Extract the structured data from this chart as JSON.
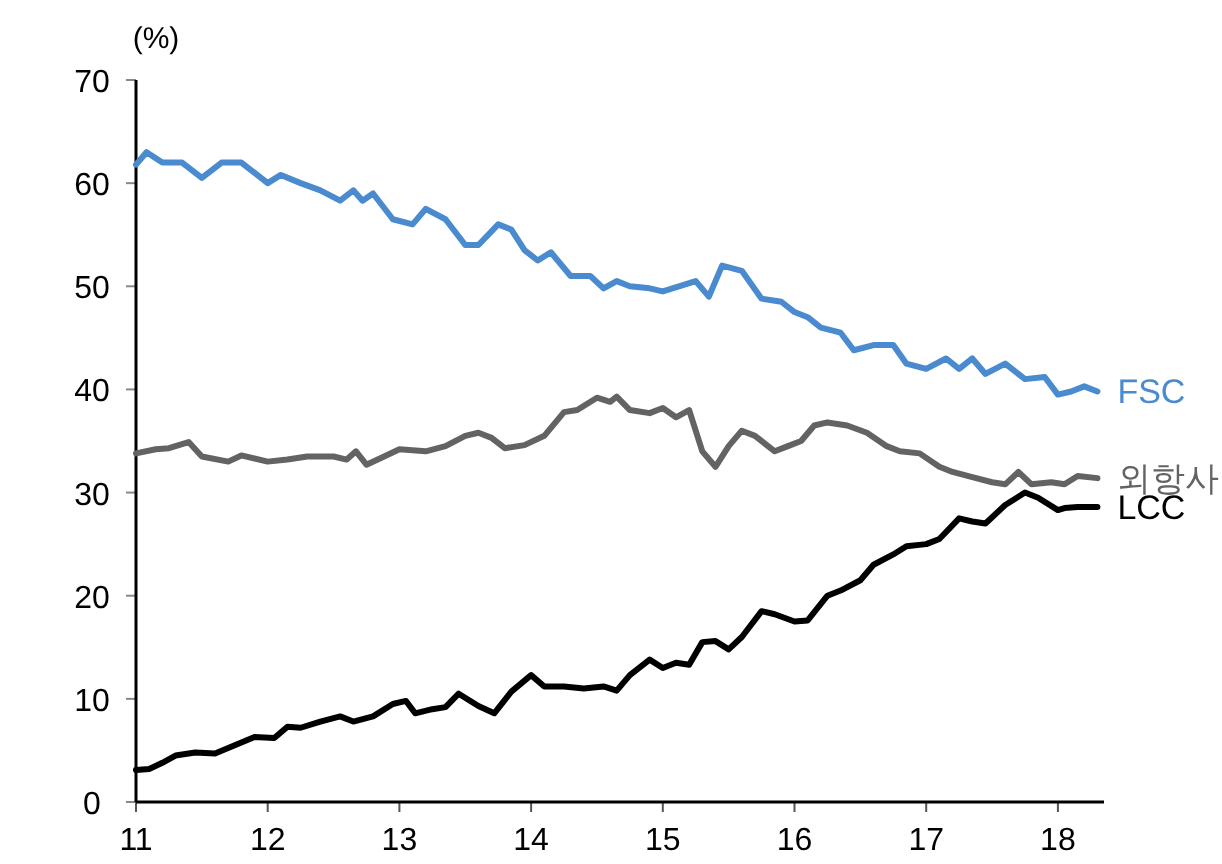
{
  "chart_data": {
    "type": "line",
    "ylabel": "(%)",
    "xlim": [
      11,
      18.35
    ],
    "ylim": [
      0,
      70
    ],
    "xticks": [
      11,
      12,
      13,
      14,
      15,
      16,
      17,
      18
    ],
    "yticks": [
      0,
      10,
      20,
      30,
      40,
      50,
      60,
      70
    ],
    "grid": false,
    "legend": false,
    "marker": "none",
    "line_style": "solid",
    "series": [
      {
        "name": "FSC",
        "color": "#4a8bd0",
        "x": [
          11,
          11.08,
          11.2,
          11.35,
          11.5,
          11.65,
          11.8,
          12,
          12.1,
          12.25,
          12.4,
          12.55,
          12.65,
          12.72,
          12.8,
          12.95,
          13.1,
          13.2,
          13.35,
          13.5,
          13.6,
          13.75,
          13.85,
          13.95,
          14.05,
          14.15,
          14.3,
          14.45,
          14.55,
          14.65,
          14.75,
          14.9,
          15,
          15.25,
          15.35,
          15.45,
          15.6,
          15.75,
          15.9,
          16,
          16.1,
          16.2,
          16.35,
          16.45,
          16.6,
          16.75,
          16.85,
          17,
          17.15,
          17.25,
          17.35,
          17.45,
          17.6,
          17.75,
          17.9,
          18,
          18.1,
          18.2,
          18.3
        ],
        "values": [
          61.8,
          63,
          62,
          62,
          60.5,
          62,
          62,
          60,
          60.8,
          60,
          59.3,
          58.3,
          59.3,
          58.3,
          59,
          56.5,
          56,
          57.5,
          56.5,
          54,
          54,
          56,
          55.5,
          53.5,
          52.5,
          53.3,
          51,
          51,
          49.8,
          50.5,
          50,
          49.8,
          49.5,
          50.5,
          49,
          52,
          51.5,
          48.8,
          48.5,
          47.5,
          47,
          46,
          45.5,
          43.8,
          44.3,
          44.3,
          42.5,
          42,
          43,
          42,
          43,
          41.5,
          42.5,
          41,
          41.2,
          39.5,
          39.8,
          40.3,
          39.8
        ]
      },
      {
        "name": "외항사",
        "color": "#636363",
        "x": [
          11,
          11.15,
          11.25,
          11.4,
          11.5,
          11.7,
          11.8,
          12,
          12.15,
          12.3,
          12.5,
          12.6,
          12.67,
          12.75,
          12.9,
          13,
          13.2,
          13.35,
          13.5,
          13.6,
          13.7,
          13.8,
          13.95,
          14.1,
          14.25,
          14.35,
          14.5,
          14.6,
          14.65,
          14.75,
          14.9,
          15,
          15.1,
          15.2,
          15.3,
          15.4,
          15.5,
          15.6,
          15.7,
          15.85,
          15.95,
          16.05,
          16.15,
          16.25,
          16.4,
          16.55,
          16.7,
          16.8,
          16.95,
          17.1,
          17.2,
          17.35,
          17.5,
          17.6,
          17.7,
          17.8,
          17.95,
          18.05,
          18.15,
          18.3
        ],
        "values": [
          33.8,
          34.2,
          34.3,
          34.9,
          33.5,
          33,
          33.6,
          33,
          33.2,
          33.5,
          33.5,
          33.2,
          34,
          32.7,
          33.6,
          34.2,
          34,
          34.5,
          35.5,
          35.8,
          35.3,
          34.3,
          34.6,
          35.5,
          37.8,
          38,
          39.2,
          38.8,
          39.3,
          38,
          37.7,
          38.2,
          37.3,
          38,
          34,
          32.5,
          34.5,
          36,
          35.5,
          34,
          34.5,
          35,
          36.5,
          36.8,
          36.5,
          35.8,
          34.5,
          34,
          33.8,
          32.5,
          32,
          31.5,
          31,
          30.8,
          32,
          30.8,
          31,
          30.8,
          31.6,
          31.4
        ]
      },
      {
        "name": "LCC",
        "color": "#000000",
        "x": [
          11,
          11.1,
          11.2,
          11.3,
          11.45,
          11.6,
          11.75,
          11.9,
          12.05,
          12.15,
          12.25,
          12.4,
          12.55,
          12.65,
          12.8,
          12.95,
          13.05,
          13.12,
          13.25,
          13.35,
          13.45,
          13.6,
          13.72,
          13.85,
          14,
          14.1,
          14.25,
          14.4,
          14.55,
          14.65,
          14.75,
          14.9,
          15,
          15.1,
          15.2,
          15.3,
          15.4,
          15.5,
          15.6,
          15.75,
          15.85,
          16,
          16.1,
          16.25,
          16.35,
          16.5,
          16.6,
          16.75,
          16.85,
          17,
          17.1,
          17.25,
          17.35,
          17.45,
          17.6,
          17.75,
          17.85,
          18,
          18.05,
          18.15,
          18.3
        ],
        "values": [
          3.1,
          3.2,
          3.8,
          4.5,
          4.8,
          4.7,
          5.5,
          6.3,
          6.2,
          7.3,
          7.2,
          7.8,
          8.3,
          7.8,
          8.3,
          9.5,
          9.8,
          8.6,
          9,
          9.2,
          10.5,
          9.3,
          8.6,
          10.7,
          12.3,
          11.2,
          11.2,
          11,
          11.2,
          10.8,
          12.3,
          13.8,
          13,
          13.5,
          13.3,
          15.5,
          15.6,
          14.8,
          16,
          18.5,
          18.2,
          17.5,
          17.6,
          20,
          20.5,
          21.5,
          23,
          24,
          24.8,
          25,
          25.5,
          27.5,
          27.2,
          27,
          28.8,
          30,
          29.5,
          28.3,
          28.5,
          28.6,
          28.6
        ]
      }
    ]
  }
}
